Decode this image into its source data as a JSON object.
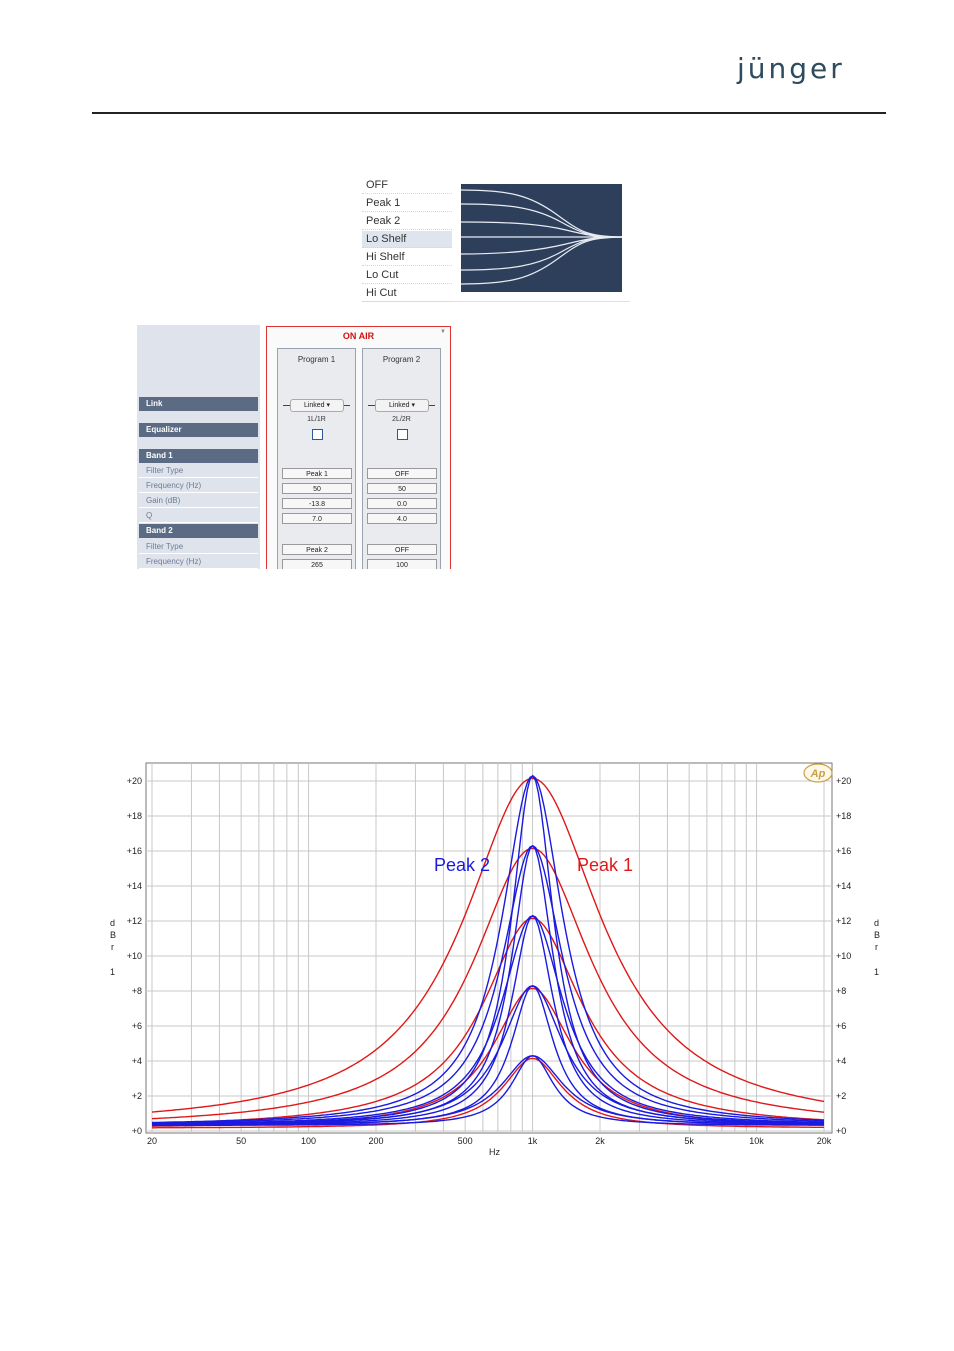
{
  "brand": {
    "logo_text": "jünger",
    "color": "#2f4b5e"
  },
  "filter_type_menu": {
    "items": [
      "OFF",
      "Peak 1",
      "Peak 2",
      "Lo Shelf",
      "Hi Shelf",
      "Lo Cut",
      "Hi Cut"
    ],
    "selected": "Lo Shelf",
    "preview_bg": "#2e3f5c"
  },
  "panel": {
    "title": "ON AIR",
    "labels": {
      "link": "Link",
      "equalizer": "Equalizer",
      "band1": "Band 1",
      "band2": "Band 2",
      "filter_type": "Filter Type",
      "frequency": "Frequency (Hz)",
      "gain": "Gain (dB)",
      "q": "Q"
    },
    "programs": [
      {
        "name": "Program 1",
        "link": "Linked",
        "channels": "1L/1R",
        "band1": {
          "filter_type": "Peak 1",
          "frequency": "50",
          "gain": "-13.8",
          "q": "7.0"
        },
        "band2": {
          "filter_type": "Peak 2",
          "frequency": "265"
        }
      },
      {
        "name": "Program 2",
        "link": "Linked",
        "channels": "2L/2R",
        "band1": {
          "filter_type": "OFF",
          "frequency": "50",
          "gain": "0.0",
          "q": "4.0"
        },
        "band2": {
          "filter_type": "OFF",
          "frequency": "100"
        }
      }
    ]
  },
  "chart_data": {
    "type": "line",
    "xlabel": "Hz",
    "ylabel": "dBr",
    "ylabel_sub": "1",
    "x_scale": "log",
    "xlim": [
      20,
      22000
    ],
    "ylim": [
      0,
      21
    ],
    "x_ticks": [
      20,
      50,
      100,
      200,
      500,
      1000,
      2000,
      5000,
      10000,
      20000
    ],
    "x_tick_labels": [
      "20",
      "50",
      "100",
      "200",
      "500",
      "1k",
      "2k",
      "5k",
      "10k",
      "20k"
    ],
    "y_ticks": [
      0,
      2,
      4,
      6,
      8,
      10,
      12,
      14,
      16,
      18,
      20
    ],
    "y_tick_labels": [
      "+0",
      "+2",
      "+4",
      "+6",
      "+8",
      "+10",
      "+12",
      "+14",
      "+16",
      "+18",
      "+20"
    ],
    "annotations": [
      "Peak 2",
      "Peak 1"
    ],
    "badge": "Ap",
    "grid": true,
    "center_hz": 1000,
    "series": [
      {
        "name": "Peak 1",
        "color": "#e01818",
        "gains_db": [
          4,
          8,
          12,
          16,
          20
        ]
      },
      {
        "name": "Peak 2",
        "color": "#1a1ae0",
        "gains_db": [
          4,
          8,
          12,
          16,
          20
        ]
      }
    ]
  }
}
